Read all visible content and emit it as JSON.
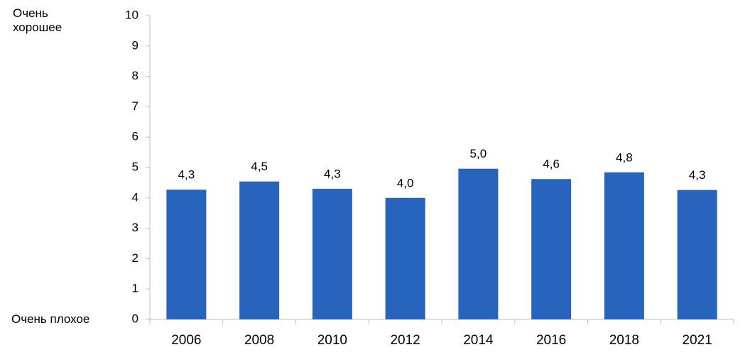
{
  "chart_data": {
    "type": "bar",
    "annotations": [
      "Очень хорошее",
      "Очень плохое"
    ],
    "categories": [
      "2006",
      "2008",
      "2010",
      "2012",
      "2014",
      "2016",
      "2018",
      "2021"
    ],
    "values": [
      4.27,
      4.54,
      4.3,
      4.0,
      4.96,
      4.62,
      4.84,
      4.26
    ],
    "value_labels": [
      "4,3",
      "4,5",
      "4,3",
      "4,0",
      "5,0",
      "4,6",
      "4,8",
      "4,3"
    ],
    "color": "#2864be",
    "ylim": [
      0,
      10
    ],
    "yticks": [
      0,
      1,
      2,
      3,
      4,
      5,
      6,
      7,
      8,
      9,
      10
    ],
    "grid": false
  }
}
